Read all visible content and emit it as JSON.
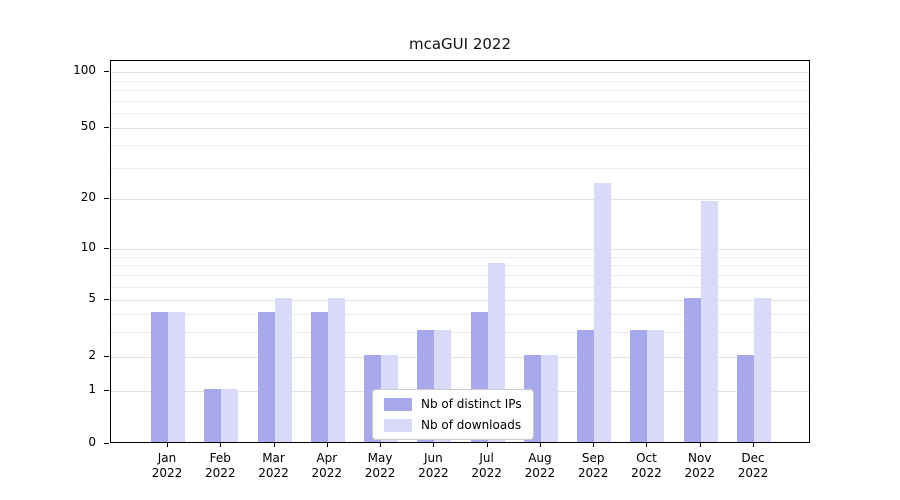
{
  "chart_data": {
    "type": "bar",
    "title": "mcaGUI 2022",
    "categories": [
      "Jan",
      "Feb",
      "Mar",
      "Apr",
      "May",
      "Jun",
      "Jul",
      "Aug",
      "Sep",
      "Oct",
      "Nov",
      "Dec"
    ],
    "category_year": "2022",
    "series": [
      {
        "name": "Nb of distinct IPs",
        "color": "#a8a8ec",
        "values": [
          4,
          1,
          4,
          4,
          2,
          3,
          4,
          2,
          3,
          3,
          5,
          2
        ]
      },
      {
        "name": "Nb of downloads",
        "color": "#d9d9f8",
        "values": [
          4,
          1,
          5,
          5,
          2,
          3,
          8,
          2,
          24,
          3,
          19,
          5
        ]
      }
    ],
    "yticks": [
      0,
      1,
      2,
      5,
      10,
      20,
      50,
      100
    ],
    "minor_gridlines": [
      3,
      4,
      6,
      7,
      8,
      9,
      30,
      40,
      60,
      70,
      80,
      90
    ],
    "ylim": [
      0,
      115
    ],
    "yscale": "log-like",
    "xlabel": "",
    "ylabel": "",
    "grid": true,
    "legend_position": "lower center"
  }
}
